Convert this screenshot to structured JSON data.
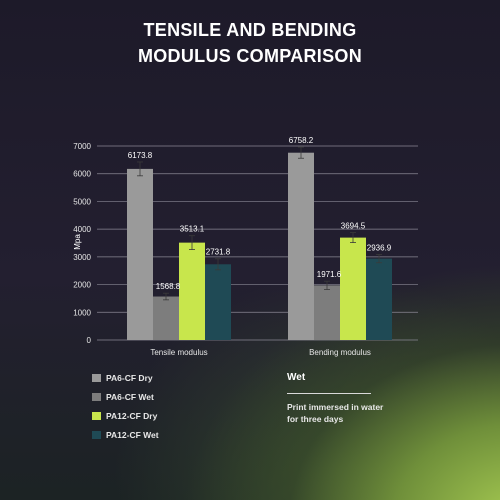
{
  "title_line1": "TENSILE AND BENDING",
  "title_line2": "MODULUS COMPARISON",
  "chart_data": {
    "type": "bar",
    "categories": [
      "Tensile modulus",
      "Bending modulus"
    ],
    "series": [
      {
        "name": "PA6-CF Dry",
        "color": "#9a9a9a",
        "values": [
          6173.8,
          6758.2
        ],
        "labels": [
          "6173.8",
          "6758.2"
        ],
        "errors": [
          250,
          200
        ]
      },
      {
        "name": "PA6-CF Wet",
        "color": "#7d7d7d",
        "values": [
          1568.8,
          1971.6
        ],
        "labels": [
          "1568.8",
          "1971.6"
        ],
        "errors": [
          120,
          150
        ]
      },
      {
        "name": "PA12-CF Dry",
        "color": "#c8e64c",
        "values": [
          3513.1,
          3694.5
        ],
        "labels": [
          "3513.1",
          "3694.5"
        ],
        "errors": [
          250,
          180
        ]
      },
      {
        "name": "PA12-CF Wet",
        "color": "#1f4a55",
        "values": [
          2731.8,
          2936.9
        ],
        "labels": [
          "2731.8",
          "2936.9"
        ],
        "errors": [
          200,
          150
        ]
      }
    ],
    "ylabel": "Mpa",
    "xlabel": "",
    "ylim": [
      0,
      7000
    ],
    "yticks": [
      0,
      1000,
      2000,
      3000,
      4000,
      5000,
      6000,
      7000
    ],
    "grid": true,
    "legend_position": "bottom-left"
  },
  "note": {
    "title": "Wet",
    "text": "Print immersed in water for three days"
  }
}
